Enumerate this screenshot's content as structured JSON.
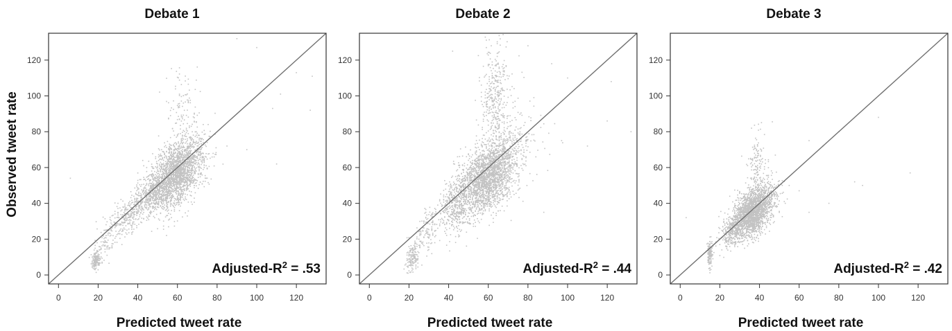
{
  "figure": {
    "ylabel": "Observed tweet rate",
    "xlabel": "Predicted tweet rate"
  },
  "chart_data": [
    {
      "type": "scatter",
      "title": "Debate 1",
      "xlabel": "Predicted tweet rate",
      "ylabel": "Observed tweet rate",
      "xlim": [
        -5,
        135
      ],
      "ylim": [
        -5,
        135
      ],
      "xticks": [
        0,
        20,
        40,
        60,
        80,
        100,
        120
      ],
      "yticks": [
        0,
        20,
        40,
        60,
        80,
        100,
        120
      ],
      "reference_line": "y = x",
      "annotation": {
        "prefix": "Adjusted-R",
        "sup": "2",
        "suffix": " = .53"
      },
      "point_color": "#c3c3c3",
      "clusters": [
        {
          "cx": 60,
          "cy": 57,
          "sx": 6.5,
          "sy": 10,
          "rho": 0.45,
          "n": 2200
        },
        {
          "cx": 47,
          "cy": 45,
          "sx": 5,
          "sy": 6,
          "rho": 0.5,
          "n": 500
        },
        {
          "cx": 35,
          "cy": 33,
          "sx": 4,
          "sy": 5,
          "rho": 0.4,
          "n": 220
        },
        {
          "cx": 19,
          "cy": 8,
          "sx": 1.2,
          "sy": 2.5,
          "rho": 0,
          "n": 160
        },
        {
          "cx": 25,
          "cy": 22,
          "sx": 3,
          "sy": 6,
          "rho": 0.3,
          "n": 100
        },
        {
          "cx": 62,
          "cy": 95,
          "sx": 4,
          "sy": 10,
          "rho": 0,
          "n": 90
        }
      ],
      "outliers": [
        [
          6,
          54
        ],
        [
          90,
          132
        ],
        [
          100,
          127
        ],
        [
          108,
          93
        ],
        [
          112,
          101
        ],
        [
          120,
          113
        ],
        [
          127,
          92
        ],
        [
          128,
          111
        ],
        [
          110,
          62
        ],
        [
          95,
          70
        ],
        [
          85,
          72
        ]
      ]
    },
    {
      "type": "scatter",
      "title": "Debate 2",
      "xlabel": "Predicted tweet rate",
      "ylabel": "Observed tweet rate",
      "xlim": [
        -5,
        135
      ],
      "ylim": [
        -5,
        135
      ],
      "xticks": [
        0,
        20,
        40,
        60,
        80,
        100,
        120
      ],
      "yticks": [
        0,
        20,
        40,
        60,
        80,
        100,
        120
      ],
      "reference_line": "y = x",
      "annotation": {
        "prefix": "Adjusted-R",
        "sup": "2",
        "suffix": " = .44"
      },
      "point_color": "#c3c3c3",
      "clusters": [
        {
          "cx": 60,
          "cy": 55,
          "sx": 7,
          "sy": 10,
          "rho": 0.4,
          "n": 2200
        },
        {
          "cx": 45,
          "cy": 40,
          "sx": 5,
          "sy": 9,
          "rho": 0.4,
          "n": 500
        },
        {
          "cx": 63,
          "cy": 100,
          "sx": 3.5,
          "sy": 15,
          "rho": 0,
          "n": 350
        },
        {
          "cx": 22,
          "cy": 10,
          "sx": 1.6,
          "sy": 4,
          "rho": 0.3,
          "n": 160
        },
        {
          "cx": 30,
          "cy": 25,
          "sx": 3,
          "sy": 6,
          "rho": 0.3,
          "n": 120
        },
        {
          "cx": 75,
          "cy": 78,
          "sx": 6,
          "sy": 14,
          "rho": 0,
          "n": 160
        }
      ],
      "outliers": [
        [
          42,
          125
        ],
        [
          97,
          75
        ],
        [
          100,
          110
        ],
        [
          120,
          86
        ],
        [
          122,
          108
        ],
        [
          132,
          80
        ],
        [
          88,
          35
        ],
        [
          110,
          72
        ],
        [
          80,
          128
        ],
        [
          92,
          118
        ]
      ]
    },
    {
      "type": "scatter",
      "title": "Debate 3",
      "xlabel": "Predicted tweet rate",
      "ylabel": "Observed tweet rate",
      "xlim": [
        -5,
        135
      ],
      "ylim": [
        -5,
        135
      ],
      "xticks": [
        0,
        20,
        40,
        60,
        80,
        100,
        120
      ],
      "yticks": [
        0,
        20,
        40,
        60,
        80,
        100,
        120
      ],
      "reference_line": "y = x",
      "annotation": {
        "prefix": "Adjusted-R",
        "sup": "2",
        "suffix": " = .42"
      },
      "point_color": "#c3c3c3",
      "clusters": [
        {
          "cx": 37,
          "cy": 36,
          "sx": 5,
          "sy": 7,
          "rho": 0.45,
          "n": 2200
        },
        {
          "cx": 27,
          "cy": 25,
          "sx": 3,
          "sy": 5,
          "rho": 0.4,
          "n": 350
        },
        {
          "cx": 15,
          "cy": 12,
          "sx": 0.6,
          "sy": 4,
          "rho": 0,
          "n": 130
        },
        {
          "cx": 39,
          "cy": 62,
          "sx": 3,
          "sy": 10,
          "rho": 0,
          "n": 150
        }
      ],
      "outliers": [
        [
          3,
          32
        ],
        [
          55,
          50
        ],
        [
          60,
          47
        ],
        [
          65,
          75
        ],
        [
          72,
          72
        ],
        [
          80,
          80
        ],
        [
          88,
          52
        ],
        [
          92,
          50
        ],
        [
          100,
          88
        ],
        [
          116,
          57
        ],
        [
          65,
          35
        ],
        [
          75,
          40
        ]
      ]
    }
  ]
}
